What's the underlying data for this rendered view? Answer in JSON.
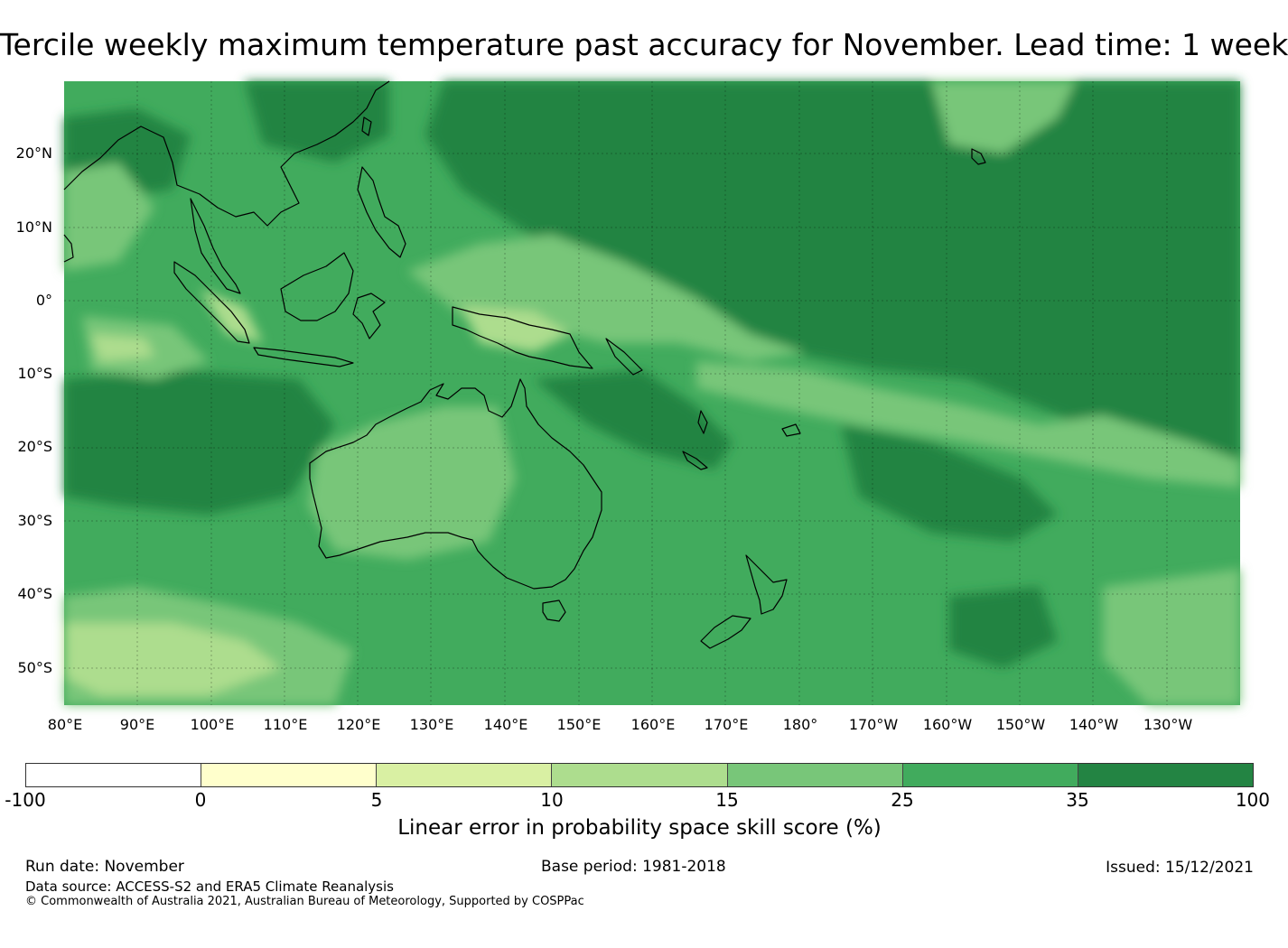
{
  "title": "Tercile weekly maximum temperature past accuracy for November. Lead time: 1 week",
  "map": {
    "lat_labels": [
      "20°N",
      "10°N",
      "0°",
      "10°S",
      "20°S",
      "30°S",
      "40°S",
      "50°S"
    ],
    "lon_labels": [
      "80°E",
      "90°E",
      "100°E",
      "110°E",
      "120°E",
      "130°E",
      "140°E",
      "150°E",
      "160°E",
      "170°E",
      "180°",
      "170°W",
      "160°W",
      "150°W",
      "140°W",
      "130°W"
    ]
  },
  "colorbar": {
    "labels": [
      "-100",
      "0",
      "5",
      "10",
      "15",
      "25",
      "35",
      "100"
    ],
    "colors": [
      "#ffffff",
      "#ffffcc",
      "#d9f0a3",
      "#addd8e",
      "#78c679",
      "#41ab5d",
      "#238443"
    ],
    "title": "Linear error in probability space skill score (%)"
  },
  "footer": {
    "run_date": "Run date: November",
    "base_period": "Base period: 1981-2018",
    "issued": "Issued: 15/12/2021",
    "data_source": "Data source: ACCESS-S2 and ERA5 Climate Reanalysis",
    "copyright": "© Commonwealth of Australia 2021, Australian Bureau of Meteorology, Supported by COSPPac"
  }
}
